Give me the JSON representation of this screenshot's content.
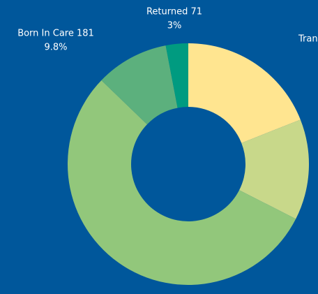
{
  "chart_data": {
    "type": "donut",
    "categories": [
      "Tran",
      null,
      null,
      "Born In Care 181",
      "Returned 71"
    ],
    "values": [
      19,
      13.5,
      54.7,
      9.8,
      3
    ],
    "value_labels": [
      null,
      null,
      null,
      "9.8%",
      "3%"
    ],
    "colors": [
      "#ffe590",
      "#c8d88a",
      "#92c77b",
      "#5cb07d",
      "#009b80"
    ],
    "background": "#00579b"
  }
}
